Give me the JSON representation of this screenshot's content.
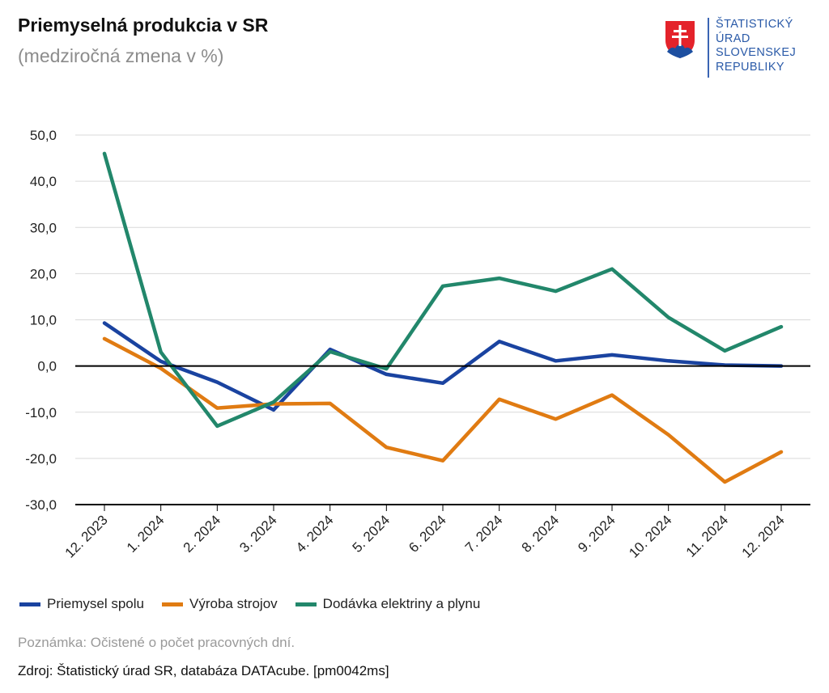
{
  "header": {
    "title": "Priemyselná produkcia v SR",
    "subtitle": "(medziročná zmena v %)"
  },
  "logo": {
    "lines": [
      "ŠTATISTICKÝ",
      "ÚRAD",
      "SLOVENSKEJ",
      "REPUBLIKY"
    ],
    "color": "#2a5aa8",
    "emblem": "slovak-coat-of-arms"
  },
  "chart_data": {
    "type": "line",
    "title": "Priemyselná produkcia v SR",
    "subtitle": "(medziročná zmena v %)",
    "categories": [
      "12. 2023",
      "1. 2024",
      "2. 2024",
      "3. 2024",
      "4. 2024",
      "5. 2024",
      "6. 2024",
      "7. 2024",
      "8. 2024",
      "9. 2024",
      "10. 2024",
      "11. 2024",
      "12. 2024"
    ],
    "ylim": [
      -30,
      50
    ],
    "yticks": [
      50,
      40,
      30,
      20,
      10,
      0,
      -10,
      -20,
      -30
    ],
    "ytick_labels": [
      "50,0",
      "40,0",
      "30,0",
      "20,0",
      "10,0",
      "0,0",
      "-10,0",
      "-20,0",
      "-30,0"
    ],
    "grid": true,
    "legend_position": "bottom-left",
    "series": [
      {
        "name": "Priemysel spolu",
        "color": "#1a43a0",
        "values": [
          9.3,
          1.0,
          -3.5,
          -9.5,
          3.6,
          -1.8,
          -3.7,
          5.3,
          1.1,
          2.4,
          1.1,
          0.2,
          0.0
        ]
      },
      {
        "name": "Výroba strojov",
        "color": "#e07b12",
        "values": [
          5.9,
          -0.5,
          -9.1,
          -8.2,
          -8.1,
          -17.6,
          -20.5,
          -7.2,
          -11.5,
          -6.3,
          -14.9,
          -25.1,
          -18.6
        ]
      },
      {
        "name": "Dodávka elektriny a plynu",
        "color": "#22876b",
        "values": [
          46.0,
          3.0,
          -13.0,
          -7.8,
          3.1,
          -0.6,
          17.3,
          19.0,
          16.2,
          21.0,
          10.5,
          3.3,
          8.5
        ]
      }
    ]
  },
  "footer": {
    "note": "Poznámka: Očistené o počet pracovných dní.",
    "source": "Zdroj: Štatistický úrad SR, databáza DATAcube. [pm0042ms]"
  }
}
